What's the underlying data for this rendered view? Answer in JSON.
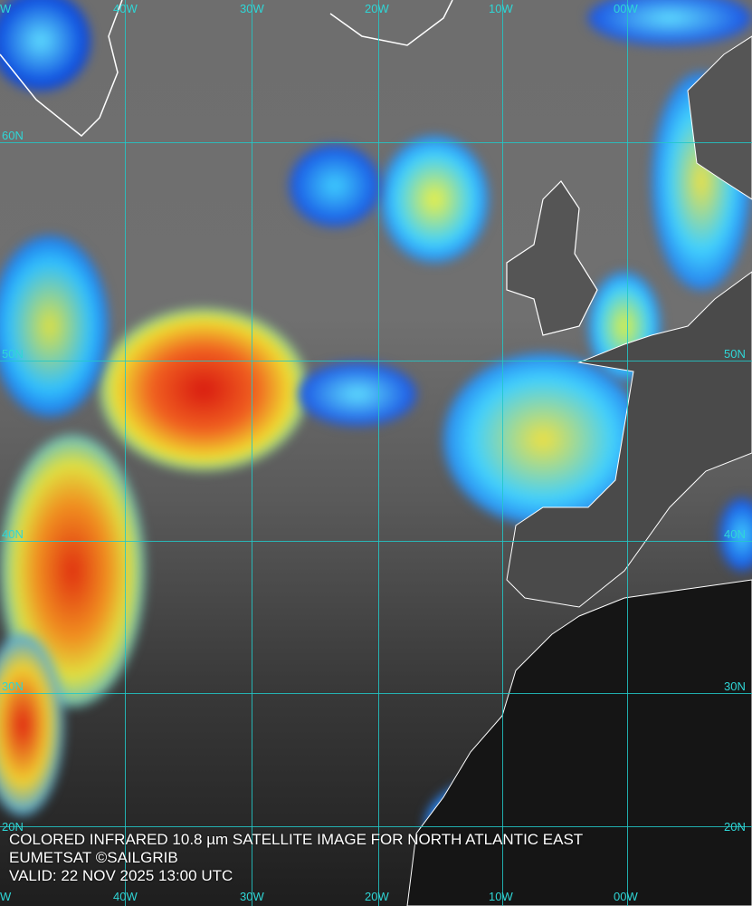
{
  "caption": {
    "line1": "COLORED INFRARED 10.8 µm SATELLITE IMAGE FOR NORTH ATLANTIC EAST",
    "line2": "EUMETSAT ©SAILGRIB",
    "line3": "VALID:  22 NOV 2025 13:00 UTC"
  },
  "longitude_labels_top": [
    "W",
    "40W",
    "30W",
    "20W",
    "10W",
    "00W"
  ],
  "longitude_labels_bottom": [
    "W",
    "40W",
    "30W",
    "20W",
    "10W",
    "00W"
  ],
  "latitude_labels_left": [
    "60N",
    "50N",
    "40N",
    "30N",
    "20N"
  ],
  "latitude_labels_right": [
    "50N",
    "40N",
    "30N",
    "20N"
  ],
  "colors": {
    "grid": "#22c8c8",
    "cold_cloud_top": "#e02010",
    "mid_cloud": "#f0e020",
    "warm_cloud": "#1040e0",
    "coastline": "#ffffff"
  }
}
